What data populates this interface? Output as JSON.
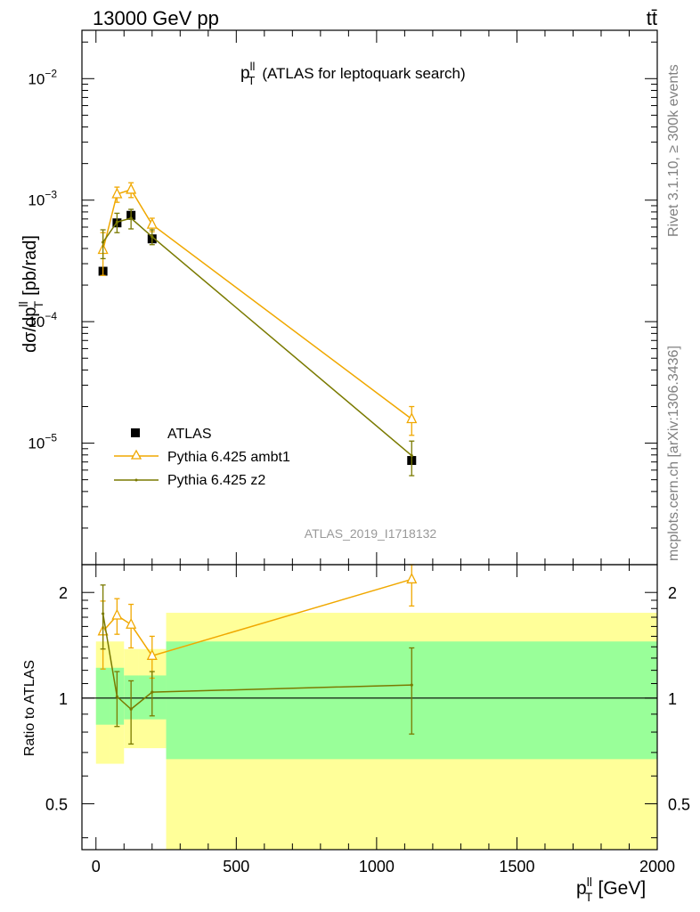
{
  "header": {
    "energy_label": "13000 GeV pp",
    "process_label": "tt̄"
  },
  "side_labels": {
    "rivet": "Rivet 3.1.10, ≥ 300k events",
    "mcplots": "mcplots.cern.ch [arXiv:1306.3436]"
  },
  "main_plot": {
    "title_var": "p",
    "title_sup": "ll",
    "title_sub": "T",
    "title_rest": "(ATLAS for leptoquark search)",
    "ylabel": "dσ/dp",
    "ylabel_sup": "ll",
    "ylabel_sub": "T",
    "ylabel_unit": "[pb/rad]",
    "watermark": "ATLAS_2019_I1718132"
  },
  "legend": [
    {
      "label": "ATLAS"
    },
    {
      "label": "Pythia 6.425 ambt1"
    },
    {
      "label": "Pythia 6.425 z2"
    }
  ],
  "ratio_plot": {
    "ylabel": "Ratio to ATLAS"
  },
  "xaxis": {
    "label_var": "p",
    "label_sup": "ll",
    "label_sub": "T",
    "label_unit": "[GeV]"
  },
  "chart_data": [
    {
      "type": "scatter",
      "yscale": "log",
      "xlim": [
        -50,
        2000
      ],
      "ylim": [
        1e-06,
        0.025
      ],
      "yticks": [
        {
          "label": "10",
          "exp": "−2"
        },
        {
          "label": "10",
          "exp": "−3"
        },
        {
          "label": "10",
          "exp": "−4"
        },
        {
          "label": "10",
          "exp": "−5"
        }
      ],
      "series": [
        {
          "name": "ATLAS",
          "color": "#000000",
          "marker": "square",
          "x": [
            25,
            75,
            125,
            200,
            1125
          ],
          "y": [
            0.00026,
            0.00065,
            0.00075,
            0.00048,
            7.2e-06
          ]
        },
        {
          "name": "Pythia 6.425 ambt1",
          "color": "#f0a800",
          "marker": "open-triangle",
          "x": [
            25,
            75,
            125,
            200,
            1125
          ],
          "y": [
            0.00039,
            0.00112,
            0.00122,
            0.00063,
            1.58e-05
          ],
          "yerr": [
            0.00015,
            0.00016,
            0.00017,
            8e-05,
            4.2e-06
          ]
        },
        {
          "name": "Pythia 6.425 z2",
          "color": "#7a7a00",
          "marker": "dot",
          "x": [
            25,
            75,
            125,
            200,
            1125
          ],
          "y": [
            0.00045,
            0.00066,
            0.00071,
            0.0005,
            7.9e-06
          ],
          "yerr": [
            0.00012,
            0.00012,
            0.00013,
            7e-05,
            2.5e-06
          ]
        }
      ]
    },
    {
      "type": "line",
      "yscale": "log",
      "xlim": [
        -50,
        2000
      ],
      "ylim": [
        0.37,
        2.4
      ],
      "xticks": [
        0,
        500,
        1000,
        1500,
        2000
      ],
      "yticks": [
        0.5,
        1,
        2
      ],
      "ylabel": "Ratio to ATLAS",
      "reference_line": 1,
      "bands": [
        {
          "x0": 0,
          "x1": 50,
          "yellow": [
            0.65,
            1.45
          ],
          "green": [
            0.84,
            1.22
          ]
        },
        {
          "x0": 50,
          "x1": 100,
          "yellow": [
            0.65,
            1.45
          ],
          "green": [
            0.84,
            1.22
          ]
        },
        {
          "x0": 100,
          "x1": 150,
          "yellow": [
            0.72,
            1.38
          ],
          "green": [
            0.87,
            1.16
          ]
        },
        {
          "x0": 150,
          "x1": 250,
          "yellow": [
            0.72,
            1.38
          ],
          "green": [
            0.87,
            1.16
          ]
        },
        {
          "x0": 250,
          "x1": 2000,
          "yellow": [
            0.25,
            1.75
          ],
          "green": [
            0.67,
            1.45
          ]
        }
      ],
      "series": [
        {
          "name": "Pythia 6.425 ambt1",
          "color": "#f0a800",
          "x": [
            25,
            75,
            125,
            200,
            1125
          ],
          "y": [
            1.55,
            1.72,
            1.62,
            1.32,
            2.18
          ],
          "yerr": [
            0.34,
            0.2,
            0.23,
            0.18,
            0.35
          ]
        },
        {
          "name": "Pythia 6.425 z2",
          "color": "#7a7a00",
          "x": [
            25,
            75,
            125,
            200,
            1125
          ],
          "y": [
            1.74,
            1.01,
            0.93,
            1.04,
            1.09
          ],
          "yerr": [
            0.36,
            0.18,
            0.19,
            0.15,
            0.3
          ]
        }
      ]
    }
  ]
}
